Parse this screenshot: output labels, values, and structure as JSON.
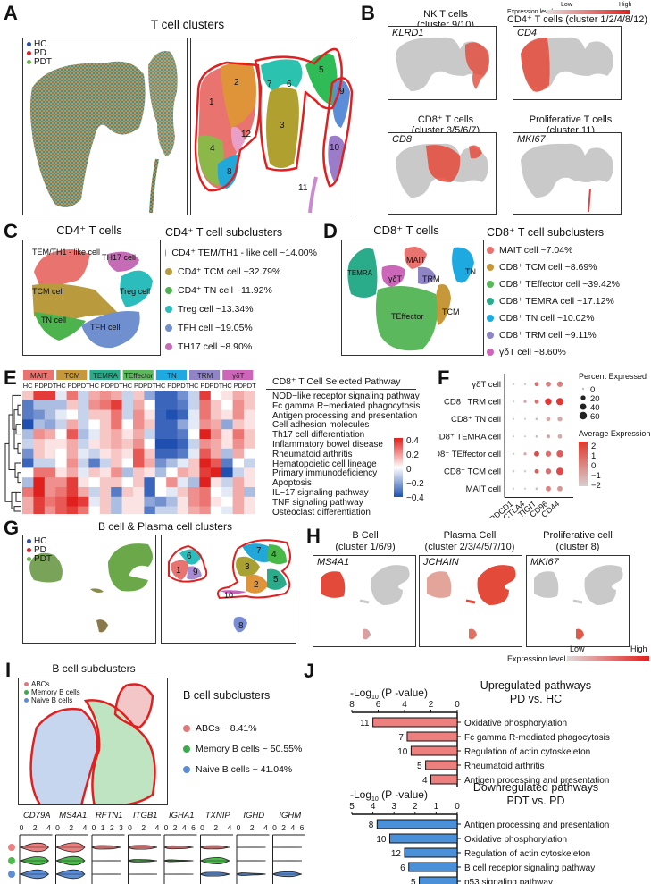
{
  "panels": {
    "A": {
      "label": "A",
      "title": "T cell clusters",
      "legend": [
        {
          "name": "HC",
          "color": "#2f4fa3"
        },
        {
          "name": "PD",
          "color": "#d9262b"
        },
        {
          "name": "PDT",
          "color": "#6ab04c"
        }
      ],
      "cluster_labels": [
        "1",
        "2",
        "3",
        "4",
        "5",
        "6",
        "7",
        "8",
        "9",
        "10",
        "11",
        "12"
      ]
    },
    "B": {
      "label": "B",
      "legend_title": "Expression level",
      "legend_low": "Low",
      "legend_high": "High",
      "plots": [
        {
          "title1": "NK T cells",
          "title2": "(cluster 9/10)",
          "gene": "KLRD1"
        },
        {
          "title1": "CD4⁺ T cells",
          "title2": "(cluster 1/2/4/8/12)",
          "gene": "CD4"
        },
        {
          "title1": "CD8⁺ T cells",
          "title2": "(cluster 3/5/6/7)",
          "gene": "CD8"
        },
        {
          "title1": "Proliferative T cells",
          "title2": "(cluster 11)",
          "gene": "MKI67"
        }
      ]
    },
    "C": {
      "label": "C",
      "title": "CD4⁺ T cells",
      "legend_title": "CD4⁺ T cell subclusters",
      "plot_labels": [
        "TEM/TH1 - like cell",
        "TH17 cell",
        "TCM cell",
        "Treg cell",
        "TN cell",
        "TFH cell"
      ],
      "legend": [
        {
          "text": "CD4⁺ TEM/TH1 - like cell ~14.00%",
          "color": "#e8736f"
        },
        {
          "text": "CD4⁺ TCM cell ~32.79%",
          "color": "#b99a3c"
        },
        {
          "text": "CD4⁺ TN cell ~11.92%",
          "color": "#4db34d"
        },
        {
          "text": "Treg cell ~13.34%",
          "color": "#2bbcbc"
        },
        {
          "text": "TFH cell ~19.05%",
          "color": "#6f8fcf"
        },
        {
          "text": "TH17 cell ~8.90%",
          "color": "#c66bb5"
        }
      ]
    },
    "D": {
      "label": "D",
      "title": "CD8⁺ T cells",
      "legend_title": "CD8⁺ T cell subclusters",
      "plot_labels": [
        "MAIT",
        "TEMRA",
        "γδT",
        "TRM",
        "TN",
        "TCM",
        "TEffector"
      ],
      "legend": [
        {
          "text": "MAIT cell ~7.04%",
          "color": "#e8736f"
        },
        {
          "text": "CD8⁺ TCM cell ~8.69%",
          "color": "#c7983a"
        },
        {
          "text": "CD8⁺ TEffector cell ~39.42%",
          "color": "#5cb85c"
        },
        {
          "text": "CD8⁺ TEMRA cell ~17.12%",
          "color": "#2aab8a"
        },
        {
          "text": "CD8⁺ TN cell ~10.02%",
          "color": "#1fa9e1"
        },
        {
          "text": "CD8⁺ TRM cell ~9.11%",
          "color": "#8f84c4"
        },
        {
          "text": "γδT cell ~8.60%",
          "color": "#cc66b8"
        }
      ]
    },
    "E": {
      "label": "E",
      "title": "CD8⁺ T Cell Selected Pathway",
      "colorbar": [
        "0.4",
        "0.2",
        "0",
        "−0.2",
        "−0.4"
      ]
    },
    "F": {
      "label": "F",
      "size_legend_title": "Percent Expressed",
      "size_legend": [
        "0",
        "20",
        "40",
        "60"
      ],
      "color_legend_title": "Average Expression",
      "color_legend": [
        "2",
        "1",
        "0",
        "−1",
        "−2"
      ]
    },
    "G": {
      "label": "G",
      "title": "B cell & Plasma cell clusters",
      "legend": [
        {
          "name": "HC",
          "color": "#2f4fa3"
        },
        {
          "name": "PD",
          "color": "#d9262b"
        },
        {
          "name": "PDT",
          "color": "#6ab04c"
        }
      ],
      "cluster_labels": [
        "1",
        "2",
        "3",
        "4",
        "5",
        "6",
        "7",
        "8",
        "9",
        "10"
      ]
    },
    "H": {
      "label": "H",
      "legend_title": "Expression level",
      "legend_low": "Low",
      "legend_high": "High",
      "plots": [
        {
          "title1": "B Cell",
          "title2": "(cluster 1/6/9)",
          "gene": "MS4A1"
        },
        {
          "title1": "Plasma Cell",
          "title2": "(cluster 2/3/4/5/7/10)",
          "gene": "JCHAIN"
        },
        {
          "title1": "Proliferative cell",
          "title2": "(cluster 8)",
          "gene": "MKI67"
        }
      ]
    },
    "I": {
      "label": "I",
      "title": "B cell subclusters",
      "legend_title": "B cell subclusters",
      "plot_legend": [
        {
          "name": "ABCs",
          "color": "#e07a7a"
        },
        {
          "name": "Memory B cells",
          "color": "#3aaa4a"
        },
        {
          "name": "Naive B cells",
          "color": "#5b8ed6"
        }
      ],
      "legend": [
        {
          "text": "ABCs ~ 8.41%",
          "color": "#e07a7a"
        },
        {
          "text": "Memory B cells ~ 50.55%",
          "color": "#3aaa4a"
        },
        {
          "text": "Naive B cells ~ 41.04%",
          "color": "#5b8ed6"
        }
      ],
      "violin_genes": [
        {
          "gene": "CD79A",
          "ticks": [
            "0",
            "2",
            "4"
          ]
        },
        {
          "gene": "MS4A1",
          "ticks": [
            "0",
            "2",
            "4"
          ]
        },
        {
          "gene": "RFTN1",
          "ticks": [
            "0",
            "1",
            "2",
            "3"
          ]
        },
        {
          "gene": "ITGB1",
          "ticks": [
            "0",
            "2",
            "4"
          ]
        },
        {
          "gene": "IGHA1",
          "ticks": [
            "0",
            "2",
            "4",
            "6"
          ]
        },
        {
          "gene": "TXNIP",
          "ticks": [
            "0",
            "2",
            "4"
          ]
        },
        {
          "gene": "IGHD",
          "ticks": [
            "0",
            "2",
            "4"
          ]
        },
        {
          "gene": "IGHM",
          "ticks": [
            "0",
            "2",
            "4",
            "6"
          ]
        }
      ]
    },
    "J": {
      "label": "J",
      "axis_title": "-Log10 (P -value)"
    }
  },
  "chart_data": [
    {
      "type": "heatmap",
      "title": "CD8⁺ T Cell Selected Pathway",
      "group_headers": [
        {
          "name": "MAIT",
          "color": "#e8736f"
        },
        {
          "name": "TCM",
          "color": "#c7983a"
        },
        {
          "name": "TEMRA",
          "color": "#2aab8a"
        },
        {
          "name": "TEffector",
          "color": "#5cb85c"
        },
        {
          "name": "TN",
          "color": "#1fa9e1"
        },
        {
          "name": "TRM",
          "color": "#8f84c4"
        },
        {
          "name": "γδT",
          "color": "#cc66b8"
        }
      ],
      "columns": [
        "HC",
        "PD",
        "PDT",
        "HC",
        "PD",
        "PDT",
        "HC",
        "PD",
        "PDT",
        "HC",
        "PD",
        "PDT",
        "HC",
        "PD",
        "PDT",
        "HC",
        "PD",
        "PDT",
        "HC",
        "PD",
        "PDT"
      ],
      "rows": [
        "NOD−like receptor signaling pathway",
        "Fc gamma R−mediated phagocytosis",
        "Antigen processing and presentation",
        "Cell adhesion molecules",
        "Th17 cell differentiation",
        "Inflammatory bowel disease",
        "Rheumatoid arthritis",
        "Hematopoietic cell lineage",
        "Primary immunodeficiency",
        "Apoptosis",
        "IL−17 signaling pathway",
        "TNF signaling pathway",
        "Osteoclast differentiation"
      ],
      "values": [
        [
          0.1,
          0.35,
          0.35,
          -0.05,
          0.25,
          -0.1,
          0.15,
          0.2,
          0.15,
          -0.1,
          0.1,
          -0.2,
          -0.35,
          -0.35,
          -0.25,
          -0.1,
          0.35,
          0.0,
          0.05,
          0.15,
          0.1
        ],
        [
          -0.3,
          -0.15,
          -0.15,
          -0.15,
          0.1,
          -0.1,
          0.2,
          0.25,
          0.35,
          -0.1,
          0.15,
          0.0,
          -0.35,
          -0.35,
          -0.3,
          -0.1,
          0.25,
          0.1,
          0.0,
          0.2,
          0.1
        ],
        [
          -0.3,
          -0.25,
          -0.15,
          -0.05,
          0.0,
          -0.1,
          0.1,
          0.1,
          0.25,
          -0.1,
          0.2,
          0.05,
          -0.35,
          -0.4,
          -0.35,
          -0.05,
          0.25,
          0.1,
          0.05,
          0.2,
          0.05
        ],
        [
          -0.4,
          -0.15,
          -0.2,
          -0.1,
          0.15,
          -0.1,
          0.0,
          0.1,
          0.25,
          0.0,
          0.2,
          0.1,
          -0.35,
          -0.35,
          -0.2,
          -0.05,
          0.2,
          0.15,
          -0.2,
          0.1,
          0.05
        ],
        [
          -0.15,
          0.2,
          0.15,
          0.0,
          0.3,
          -0.15,
          -0.05,
          0.1,
          0.15,
          0.05,
          0.15,
          -0.1,
          -0.35,
          -0.35,
          -0.3,
          0.0,
          0.4,
          0.2,
          0.05,
          0.25,
          0.1
        ],
        [
          -0.1,
          0.1,
          0.05,
          0.05,
          0.15,
          -0.1,
          0.05,
          0.1,
          0.15,
          0.1,
          0.2,
          0.0,
          -0.4,
          -0.4,
          -0.35,
          -0.1,
          0.2,
          0.15,
          0.05,
          0.2,
          0.1
        ],
        [
          -0.25,
          0.1,
          0.05,
          0.0,
          0.15,
          -0.05,
          -0.1,
          0.05,
          0.1,
          0.05,
          0.3,
          0.1,
          -0.35,
          -0.35,
          -0.3,
          -0.05,
          0.3,
          0.15,
          -0.15,
          0.15,
          0.0
        ],
        [
          -0.35,
          -0.1,
          -0.1,
          0.0,
          0.2,
          -0.1,
          -0.3,
          -0.1,
          0.1,
          0.0,
          0.3,
          0.15,
          -0.25,
          -0.15,
          -0.05,
          0.1,
          0.4,
          0.3,
          -0.3,
          0.0,
          -0.1
        ],
        [
          0.0,
          0.25,
          0.25,
          0.05,
          0.15,
          -0.05,
          0.1,
          0.05,
          0.2,
          -0.15,
          0.1,
          0.05,
          -0.15,
          0.0,
          0.15,
          0.1,
          0.35,
          0.4,
          -0.4,
          -0.1,
          0.05
        ],
        [
          -0.15,
          0.4,
          0.2,
          0.2,
          0.35,
          0.05,
          0.0,
          0.1,
          0.1,
          0.0,
          0.1,
          -0.35,
          0.0,
          0.2,
          -0.05,
          -0.15,
          0.4,
          0.05,
          -0.1,
          0.15,
          0.05
        ],
        [
          0.25,
          0.4,
          0.2,
          0.25,
          0.35,
          0.15,
          -0.1,
          0.1,
          -0.3,
          0.1,
          0.05,
          -0.35,
          0.0,
          -0.05,
          0.1,
          0.2,
          0.25,
          0.0,
          -0.05,
          0.15,
          -0.15
        ],
        [
          0.15,
          0.35,
          0.25,
          0.3,
          0.4,
          0.35,
          -0.05,
          0.1,
          -0.15,
          0.05,
          0.05,
          -0.2,
          -0.25,
          -0.15,
          0.05,
          0.2,
          0.25,
          0.05,
          0.0,
          0.15,
          0.05
        ],
        [
          0.15,
          0.35,
          0.2,
          0.3,
          0.35,
          0.25,
          0.0,
          0.1,
          -0.15,
          0.05,
          0.05,
          -0.3,
          -0.1,
          -0.1,
          0.05,
          0.15,
          0.2,
          0.0,
          -0.05,
          0.15,
          0.05
        ]
      ],
      "color_range": [
        -0.4,
        0.4
      ]
    },
    {
      "type": "scatter",
      "subtype": "dotplot",
      "xlabel": "",
      "ylabel": "",
      "x_categories": [
        "PDCD1",
        "CTLA4",
        "TIGIT",
        "CD96",
        "CD44"
      ],
      "y_categories": [
        "γδT cell",
        "CD8⁺ TRM cell",
        "CD8⁺ TN cell",
        "CD8⁺ TEMRA cell",
        "CD8⁺ TEffector cell",
        "CD8⁺ TCM cell",
        "MAIT cell"
      ],
      "percent_expressed": [
        [
          2,
          2,
          15,
          25,
          30
        ],
        [
          2,
          5,
          15,
          45,
          55
        ],
        [
          1,
          1,
          3,
          15,
          20
        ],
        [
          1,
          1,
          3,
          10,
          15
        ],
        [
          2,
          5,
          25,
          30,
          45
        ],
        [
          2,
          2,
          15,
          30,
          55
        ],
        [
          1,
          1,
          3,
          25,
          25
        ]
      ],
      "average_expression": [
        [
          -2,
          -2,
          0.5,
          0,
          0
        ],
        [
          -2,
          -1,
          0.5,
          2,
          2
        ],
        [
          -2,
          -2,
          -1.5,
          -1,
          -1
        ],
        [
          -2,
          -2,
          -1.5,
          -1,
          -1
        ],
        [
          -2,
          -1,
          1.5,
          0.5,
          1
        ],
        [
          -2,
          -2,
          1,
          0.5,
          1.5
        ],
        [
          -2,
          -2,
          -1.5,
          0,
          -0.5
        ]
      ],
      "size_range": [
        0,
        60
      ],
      "color_range": [
        -2,
        2
      ]
    },
    {
      "type": "bar",
      "orientation": "horizontal",
      "title": "Upregulated pathways PD vs. HC",
      "xlabel": "-Log10 (P -value)",
      "categories": [
        "Oxidative phosphorylation",
        "Fc gamma R-mediated phagocytosis",
        "Regulation of actin cytoskeleton",
        "Rheumatoid arthritis",
        "Antigen processing and presentation"
      ],
      "values": [
        6.4,
        3.8,
        3.5,
        2.4,
        2.0
      ],
      "gene_counts": [
        "11",
        "7",
        "10",
        "5",
        "4"
      ],
      "xlim": [
        0,
        8
      ],
      "ticks": [
        "8",
        "6",
        "4",
        "2",
        "0"
      ],
      "color": "#ee7f7f"
    },
    {
      "type": "bar",
      "orientation": "horizontal",
      "title": "Downregulated pathways PDT vs. PD",
      "xlabel": "-Log10 (P -value)",
      "categories": [
        "Antigen processing and presentation",
        "Oxidative phosphorylation",
        "Regulation of actin cytoskeleton",
        "B cell receptor signaling pathway",
        "p53 signaling pathway"
      ],
      "values": [
        3.8,
        3.2,
        2.5,
        2.3,
        1.8
      ],
      "gene_counts": [
        "8",
        "10",
        "12",
        "6",
        "5"
      ],
      "xlim": [
        0,
        5
      ],
      "ticks": [
        "5",
        "4",
        "3",
        "2",
        "1",
        "0"
      ],
      "color": "#4a90d9"
    }
  ]
}
